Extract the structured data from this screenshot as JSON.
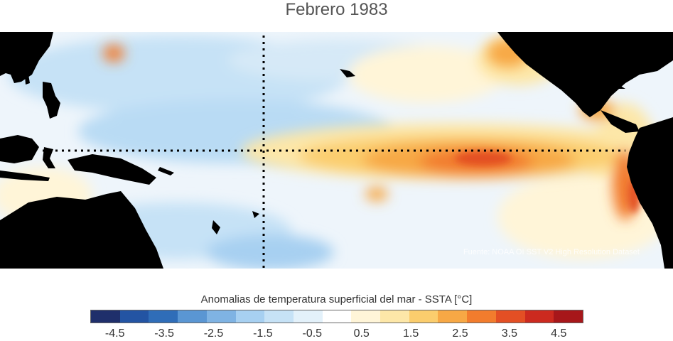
{
  "title": "Febrero 1983",
  "source": "Fuente: NOAA OI SST V2 High Resolution Dataset",
  "colorbar": {
    "label": "Anomalias de temperatura superficial del mar - SSTA  [°C]",
    "ticks": [
      "-4.5",
      "-3.5",
      "-2.5",
      "-1.5",
      "-0.5",
      "0.5",
      "1.5",
      "2.5",
      "3.5",
      "4.5"
    ],
    "range": [
      -5,
      5
    ],
    "colors": [
      "#1f2f6b",
      "#2354a3",
      "#2f6db8",
      "#5a96d3",
      "#7fb3e3",
      "#a7d0f1",
      "#c6e2f6",
      "#e3f1fa",
      "#ffffff",
      "#fff5d8",
      "#fde7a8",
      "#fbcd6d",
      "#f7a845",
      "#f27c2d",
      "#e34f24",
      "#cc2a1f",
      "#a7171a"
    ],
    "land_color": "#000000",
    "ocean_neutral": "#eef5fb"
  }
}
